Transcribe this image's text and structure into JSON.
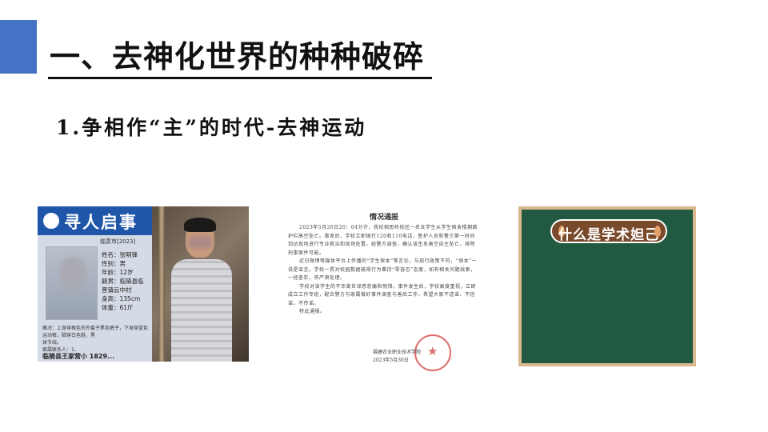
{
  "slide": {
    "title": "一、去神化世界的种种破碎",
    "subtitle": "1.争相作“主”的时代-去神运动"
  },
  "poster": {
    "heading": "寻人启事",
    "number": "临蒸市[2023]",
    "fields": [
      "姓名：张明锋",
      "性别：男",
      "年龄：12岁",
      "籍贯：临猗县临",
      "晋镇云中村",
      "身高：135cm",
      "体重：61斤"
    ],
    "footnote": "概况：上身穿格色衣外套子黑色裤子，下身穿蓝色运动裤，脚穿白色鞋，黑",
    "footnote2": "体节线。",
    "footnote3": "家属联系人：1、",
    "bottom": "临猗县王家营小 1829..."
  },
  "notice": {
    "title": "情况通报",
    "paragraphs": [
      "2023年5月26日20：04分许，我校相思岭校区一名女学生从学生宿舍楼拥跳护栏高空坠亡。事发后，学校立即拨打120和110电话，医护人员和警方第一时间到达现场进行专业救治和现场处置。经警方调查，确认该生系高空自主坠亡，排除刑事案件可能。",
      "近日微博等媒体平台上传播的“学生保本”等言论，与现行政策不符，“保本”一说是谣言。学校一贯对校园数据藐视行为秉持“零容忍”态度，如有相关问题线索，一经查实，将严肃处理。",
      "学校对该学生的不幸离世深感悲痛和惋惜。事件发生后，学校高度重视，立即成立工作专班，配合警方与家属做好事件调查与善后工作。希望大家不造谣、不信谣、不传谣。",
      "特此通报。"
    ],
    "signer": "福建农业职业技术学院",
    "date": "2023年5月30日"
  },
  "board": {
    "banner": "什么是学术妲己"
  },
  "colors": {
    "accent": "#4472c4",
    "board": "#215a40",
    "poster_blue": "#1f56a8"
  }
}
